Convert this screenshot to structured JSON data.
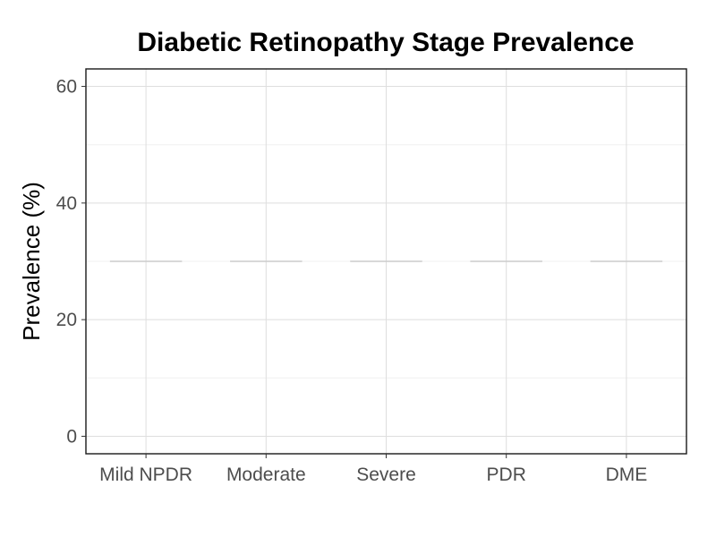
{
  "chart_data": {
    "type": "bar",
    "title": "Diabetic Retinopathy Stage Prevalence",
    "xlabel": "",
    "ylabel": "Prevalence (%)",
    "categories": [
      "Mild NPDR",
      "Moderate",
      "Severe",
      "PDR",
      "DME"
    ],
    "values": [
      30,
      30,
      30,
      30,
      30
    ],
    "ylim": [
      -3,
      63
    ],
    "yticks": [
      0,
      20,
      40,
      60
    ],
    "y_minor_ticks": [
      10,
      30,
      50
    ],
    "grid": true,
    "legend": "none",
    "mark_color": "#cccccc"
  }
}
